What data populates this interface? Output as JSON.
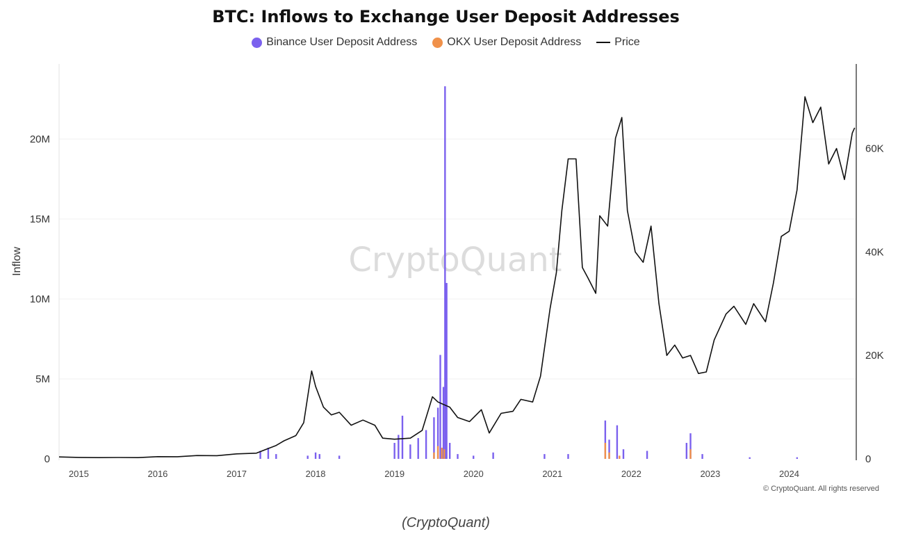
{
  "chart_data": {
    "type": "line",
    "title": "BTC: Inflows to Exchange User Deposit Addresses",
    "ylabel": "Inflow",
    "y_left_ticks": [
      "0",
      "5M",
      "10M",
      "15M",
      "20M"
    ],
    "ylim_left": [
      0,
      24000000
    ],
    "y_right_ticks": [
      "0",
      "20K",
      "40K",
      "60K"
    ],
    "ylim_right": [
      0,
      75000
    ],
    "x_ticks": [
      "2015",
      "2016",
      "2017",
      "2018",
      "2019",
      "2020",
      "2021",
      "2022",
      "2023",
      "2024"
    ],
    "xlim": [
      2014.75,
      2024.85
    ],
    "legend_position": "top-center",
    "series": [
      {
        "name": "Binance User Deposit Address",
        "type": "bar",
        "axis": "left",
        "color": "#7b61ee",
        "points": [
          [
            2017.3,
            0.5
          ],
          [
            2017.4,
            0.7
          ],
          [
            2017.5,
            0.3
          ],
          [
            2017.9,
            0.2
          ],
          [
            2018.0,
            0.4
          ],
          [
            2018.05,
            0.3
          ],
          [
            2018.3,
            0.2
          ],
          [
            2019.0,
            1.0
          ],
          [
            2019.05,
            1.5
          ],
          [
            2019.1,
            2.7
          ],
          [
            2019.2,
            0.9
          ],
          [
            2019.3,
            1.3
          ],
          [
            2019.4,
            1.8
          ],
          [
            2019.5,
            2.6
          ],
          [
            2019.55,
            3.2
          ],
          [
            2019.58,
            6.5
          ],
          [
            2019.62,
            4.5
          ],
          [
            2019.64,
            23.3
          ],
          [
            2019.66,
            11.0
          ],
          [
            2019.7,
            1.0
          ],
          [
            2019.8,
            0.3
          ],
          [
            2020.0,
            0.2
          ],
          [
            2020.25,
            0.4
          ],
          [
            2020.9,
            0.3
          ],
          [
            2021.2,
            0.3
          ],
          [
            2021.67,
            2.4
          ],
          [
            2021.72,
            1.2
          ],
          [
            2021.82,
            2.1
          ],
          [
            2021.9,
            0.6
          ],
          [
            2022.2,
            0.5
          ],
          [
            2022.7,
            1.0
          ],
          [
            2022.75,
            1.6
          ],
          [
            2022.9,
            0.3
          ],
          [
            2023.5,
            0.1
          ],
          [
            2024.1,
            0.1
          ]
        ]
      },
      {
        "name": "OKX User Deposit Address",
        "type": "bar",
        "axis": "left",
        "color": "#f0914a",
        "points": [
          [
            2019.5,
            0.4
          ],
          [
            2019.55,
            0.8
          ],
          [
            2019.6,
            0.7
          ],
          [
            2019.63,
            0.6
          ],
          [
            2021.67,
            1.0
          ],
          [
            2021.72,
            0.4
          ],
          [
            2021.85,
            0.2
          ],
          [
            2022.75,
            0.6
          ]
        ]
      },
      {
        "name": "Price",
        "type": "line",
        "axis": "right",
        "color": "#111111",
        "points": [
          [
            2014.75,
            380
          ],
          [
            2015.0,
            280
          ],
          [
            2015.25,
            240
          ],
          [
            2015.5,
            270
          ],
          [
            2015.75,
            240
          ],
          [
            2016.0,
            430
          ],
          [
            2016.25,
            420
          ],
          [
            2016.5,
            650
          ],
          [
            2016.75,
            620
          ],
          [
            2017.0,
            970
          ],
          [
            2017.25,
            1100
          ],
          [
            2017.4,
            2000
          ],
          [
            2017.5,
            2600
          ],
          [
            2017.6,
            3500
          ],
          [
            2017.75,
            4500
          ],
          [
            2017.85,
            7000
          ],
          [
            2017.95,
            17000
          ],
          [
            2018.0,
            14000
          ],
          [
            2018.1,
            10000
          ],
          [
            2018.2,
            8500
          ],
          [
            2018.3,
            9000
          ],
          [
            2018.45,
            6500
          ],
          [
            2018.6,
            7500
          ],
          [
            2018.75,
            6500
          ],
          [
            2018.85,
            4000
          ],
          [
            2019.0,
            3800
          ],
          [
            2019.2,
            4000
          ],
          [
            2019.35,
            5500
          ],
          [
            2019.48,
            12000
          ],
          [
            2019.55,
            11000
          ],
          [
            2019.7,
            10000
          ],
          [
            2019.8,
            8000
          ],
          [
            2019.95,
            7200
          ],
          [
            2020.1,
            9500
          ],
          [
            2020.2,
            5000
          ],
          [
            2020.35,
            8800
          ],
          [
            2020.5,
            9200
          ],
          [
            2020.6,
            11500
          ],
          [
            2020.75,
            11000
          ],
          [
            2020.85,
            16000
          ],
          [
            2020.97,
            29000
          ],
          [
            2021.05,
            36000
          ],
          [
            2021.12,
            48000
          ],
          [
            2021.2,
            58000
          ],
          [
            2021.3,
            58000
          ],
          [
            2021.38,
            37000
          ],
          [
            2021.45,
            35000
          ],
          [
            2021.55,
            32000
          ],
          [
            2021.6,
            47000
          ],
          [
            2021.7,
            45000
          ],
          [
            2021.8,
            62000
          ],
          [
            2021.88,
            66000
          ],
          [
            2021.95,
            48000
          ],
          [
            2022.05,
            40000
          ],
          [
            2022.15,
            38000
          ],
          [
            2022.25,
            45000
          ],
          [
            2022.35,
            30000
          ],
          [
            2022.45,
            20000
          ],
          [
            2022.55,
            22000
          ],
          [
            2022.65,
            19500
          ],
          [
            2022.75,
            20000
          ],
          [
            2022.85,
            16500
          ],
          [
            2022.95,
            16800
          ],
          [
            2023.05,
            23000
          ],
          [
            2023.2,
            28000
          ],
          [
            2023.3,
            29500
          ],
          [
            2023.45,
            26000
          ],
          [
            2023.55,
            30000
          ],
          [
            2023.7,
            26500
          ],
          [
            2023.8,
            34000
          ],
          [
            2023.9,
            43000
          ],
          [
            2024.0,
            44000
          ],
          [
            2024.1,
            52000
          ],
          [
            2024.2,
            70000
          ],
          [
            2024.3,
            65000
          ],
          [
            2024.4,
            68000
          ],
          [
            2024.5,
            57000
          ],
          [
            2024.6,
            60000
          ],
          [
            2024.7,
            54000
          ],
          [
            2024.8,
            63000
          ],
          [
            2024.83,
            64000
          ]
        ]
      }
    ]
  },
  "watermark": "CryptoQuant",
  "copyright": "© CryptoQuant. All rights reserved",
  "caption": "(CryptoQuant)"
}
